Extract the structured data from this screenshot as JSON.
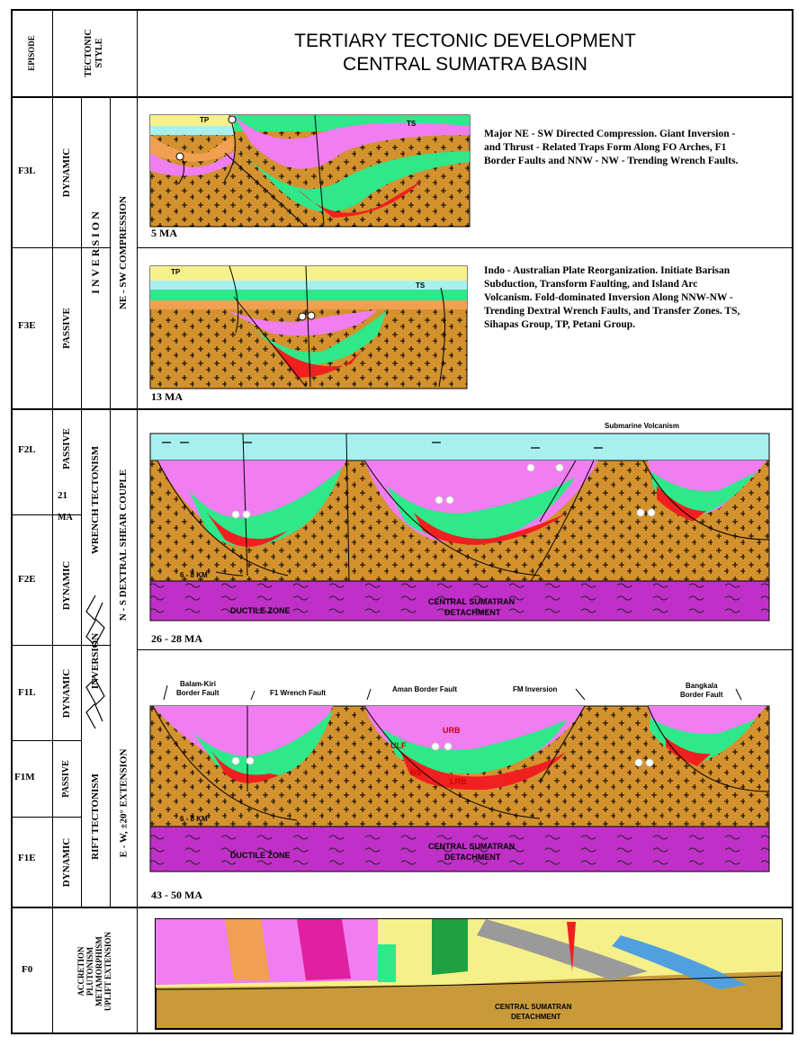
{
  "title": {
    "line1": "TERTIARY TECTONIC DEVELOPMENT",
    "line2": "CENTRAL SUMATRA BASIN"
  },
  "headers": {
    "episode": "EPISODE",
    "tectonic_style": "TECTONIC STYLE"
  },
  "episodes": {
    "f3l": "F3L",
    "f3e": "F3E",
    "f2l": "F2L",
    "f2e": "F2E",
    "f1l": "F1L",
    "f1m": "F1M",
    "f1e": "F1E",
    "f0": "F0"
  },
  "styles": {
    "f3l": "DYNAMIC",
    "f3e": "PASSIVE",
    "f2l": "PASSIVE",
    "f2l_age": "21",
    "f2l_ma": "MA",
    "f2e": "DYNAMIC",
    "f1l": "DYNAMIC",
    "f1m": "PASSIVE",
    "f1e": "DYNAMIC",
    "f0": "ACCRETION PLUTONISM METAMORPHISM UPLIFT EXTENSION"
  },
  "regimes": {
    "inversion_top": "I N V E R S I O N",
    "compression": "NE - SW  COMPRESSION",
    "wrench": "WRENCH TECTONISM",
    "dextral": "N - S  DEXTRAL SHEAR COUPLE",
    "inversion_mid": "INVERSION",
    "rift": "RIFT TECTONISM",
    "extension": "E - W, ±20° EXTENSION"
  },
  "descriptions": {
    "f3l": "Major NE - SW Directed Compression. Giant Inversion - and Thrust - Related Traps Form Along FO Arches, F1 Border Faults and NNW - NW - Trending Wrench Faults.",
    "f3e": "Indo - Australian Plate Reorganization. Initiate Barisan Subduction, Transform Faulting, and Island Arc Volcanism. Fold-dominated Inversion Along NNW-NW - Trending Dextral Wrench Faults, and Transfer Zones. TS, Sihapas Group, TP, Petani Group."
  },
  "ages": {
    "p1": "5 MA",
    "p2": "13 MA",
    "p3": "26 - 28 MA",
    "p4": "43 - 50 MA"
  },
  "labels": {
    "tp": "TP",
    "ts": "TS",
    "submarine": "Submarine Volcanism",
    "depth": "6 - 8 KM",
    "ductile": "DUCTILE ZONE",
    "detachment1": "CENTRAL SUMATRAN",
    "detachment2": "DETACHMENT",
    "balam1": "Balam-Kiri",
    "balam2": "Border Fault",
    "f1wrench": "F1 Wrench Fault",
    "aman": "Aman Border Fault",
    "fm": "FM Inversion",
    "bangko1": "Bangkala",
    "bangko2": "Border Fault",
    "ulf": "ULF",
    "urb": "URB",
    "bs": "BS",
    "lrb": "LRB",
    "f0_det1": "CENTRAL SUMATRAN",
    "f0_det2": "DETACHMENT"
  },
  "colors": {
    "basement": "#d4922e",
    "pink": "#f07ef0",
    "green": "#2ee88a",
    "red": "#f02020",
    "orange": "#f0a050",
    "yellow": "#f5f08a",
    "cyan": "#a8f0f0",
    "magenta": "#c030c8"
  }
}
